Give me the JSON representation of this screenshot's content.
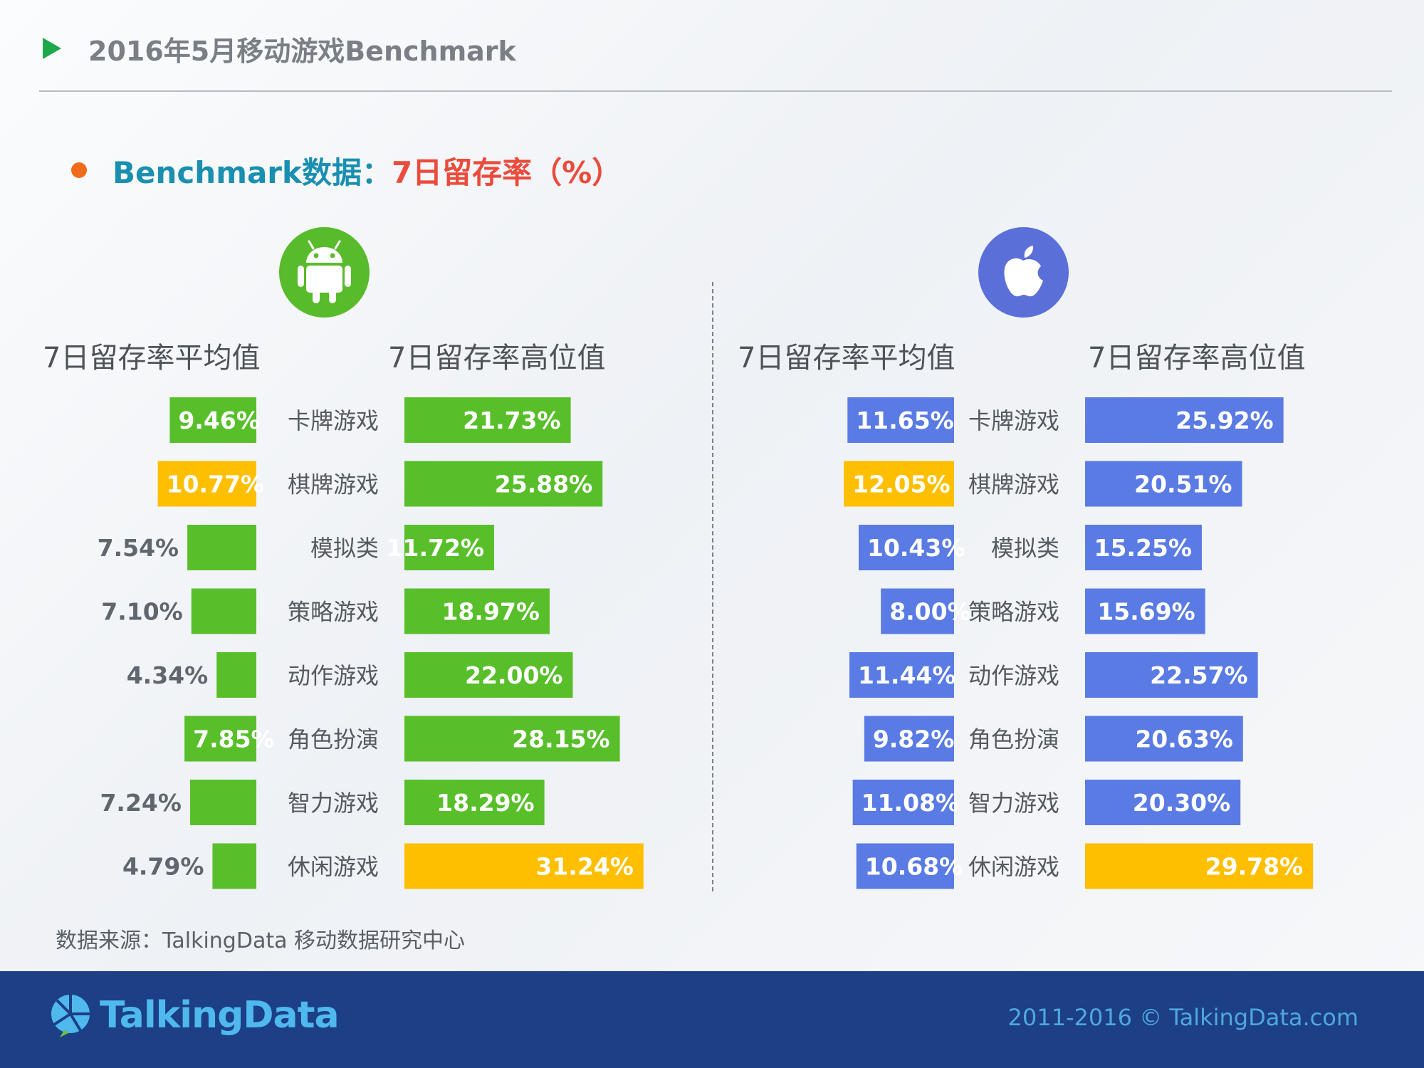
{
  "header": {
    "title": "2016年5月移动游戏Benchmark"
  },
  "subtitle": {
    "prefix": "Benchmark数据：",
    "metric": "7日留存率（%）"
  },
  "icons": {
    "android": "android-icon",
    "apple": "apple-icon",
    "header_marker": "play-icon",
    "logo": "talkingdata-logo-icon"
  },
  "columns": {
    "avg_header": "7日留存率平均值",
    "high_header": "7日留存率高位值"
  },
  "colors": {
    "android_green": "#58bf2b",
    "ios_blue": "#5a7be4",
    "highlight_yellow": "#fdbf00",
    "title_teal": "#1a8fb0",
    "metric_red": "#ea4b3c",
    "footer_navy": "#1c3f86"
  },
  "chart_data": [
    {
      "type": "bar",
      "platform": "android",
      "categories": [
        "卡牌游戏",
        "棋牌游戏",
        "模拟类",
        "策略游戏",
        "动作游戏",
        "角色扮演",
        "智力游戏",
        "休闲游戏"
      ],
      "series": [
        {
          "name": "7日留存率平均值",
          "values": [
            9.46,
            10.77,
            7.54,
            7.1,
            4.34,
            7.85,
            7.24,
            4.79
          ],
          "labels": [
            "9.46%",
            "10.77%",
            "7.54%",
            "7.10%",
            "4.34%",
            "7.85%",
            "7.24%",
            "4.79%"
          ],
          "highlight": [
            1
          ]
        },
        {
          "name": "7日留存率高位值",
          "values": [
            21.73,
            25.88,
            11.72,
            18.97,
            22.0,
            28.15,
            18.29,
            31.24
          ],
          "labels": [
            "21.73%",
            "25.88%",
            "11.72%",
            "18.97%",
            "22.00%",
            "28.15%",
            "18.29%",
            "31.24%"
          ],
          "highlight": [
            7
          ]
        }
      ]
    },
    {
      "type": "bar",
      "platform": "ios",
      "categories": [
        "卡牌游戏",
        "棋牌游戏",
        "模拟类",
        "策略游戏",
        "动作游戏",
        "角色扮演",
        "智力游戏",
        "休闲游戏"
      ],
      "series": [
        {
          "name": "7日留存率平均值",
          "values": [
            11.65,
            12.05,
            10.43,
            8.0,
            11.44,
            9.82,
            11.08,
            10.68
          ],
          "labels": [
            "11.65%",
            "12.05%",
            "10.43%",
            "8.00%",
            "11.44%",
            "9.82%",
            "11.08%",
            "10.68%"
          ],
          "highlight": [
            1
          ]
        },
        {
          "name": "7日留存率高位值",
          "values": [
            25.92,
            20.51,
            15.25,
            15.69,
            22.57,
            20.63,
            20.3,
            29.78
          ],
          "labels": [
            "25.92%",
            "20.51%",
            "15.25%",
            "15.69%",
            "22.57%",
            "20.63%",
            "20.30%",
            "29.78%"
          ],
          "highlight": [
            7
          ]
        }
      ]
    }
  ],
  "source": "数据来源：TalkingData 移动数据研究中心",
  "footer": {
    "logo_text": "TalkingData",
    "copyright": "2011-2016 © TalkingData.com"
  }
}
